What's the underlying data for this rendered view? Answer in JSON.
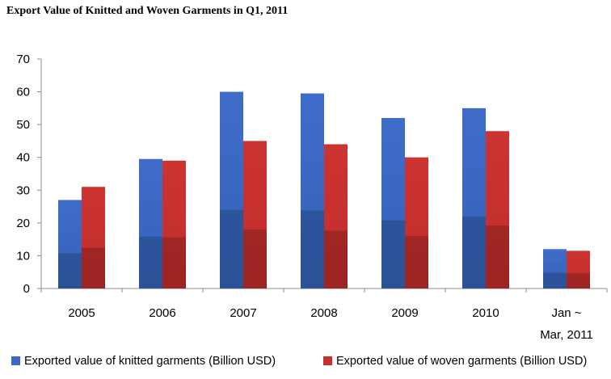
{
  "title": "Export Value of Knitted and Woven Garments in Q1, 2011",
  "chart_data": {
    "type": "bar",
    "title": "Export Value of Knitted and Woven Garments in Q1, 2011",
    "xlabel": "",
    "ylabel": "",
    "ylim": [
      0,
      70
    ],
    "yticks": [
      "0",
      "10",
      "20",
      "30",
      "40",
      "50",
      "60",
      "70"
    ],
    "grid": false,
    "legend_position": "bottom",
    "categories": [
      [
        "2005"
      ],
      [
        "2006"
      ],
      [
        "2007"
      ],
      [
        "2008"
      ],
      [
        "2009"
      ],
      [
        "2010"
      ],
      [
        "Jan ~",
        "Mar, 2011"
      ]
    ],
    "series": [
      {
        "name": "Exported value of knitted garments (Billion USD)",
        "color": "#3a68c4",
        "values": [
          27,
          39.5,
          60,
          59.5,
          52,
          55,
          12
        ]
      },
      {
        "name": "Exported value of woven garments (Billion USD)",
        "color": "#c8302e",
        "values": [
          31,
          39,
          45,
          44,
          40,
          48,
          11.5
        ]
      }
    ]
  }
}
